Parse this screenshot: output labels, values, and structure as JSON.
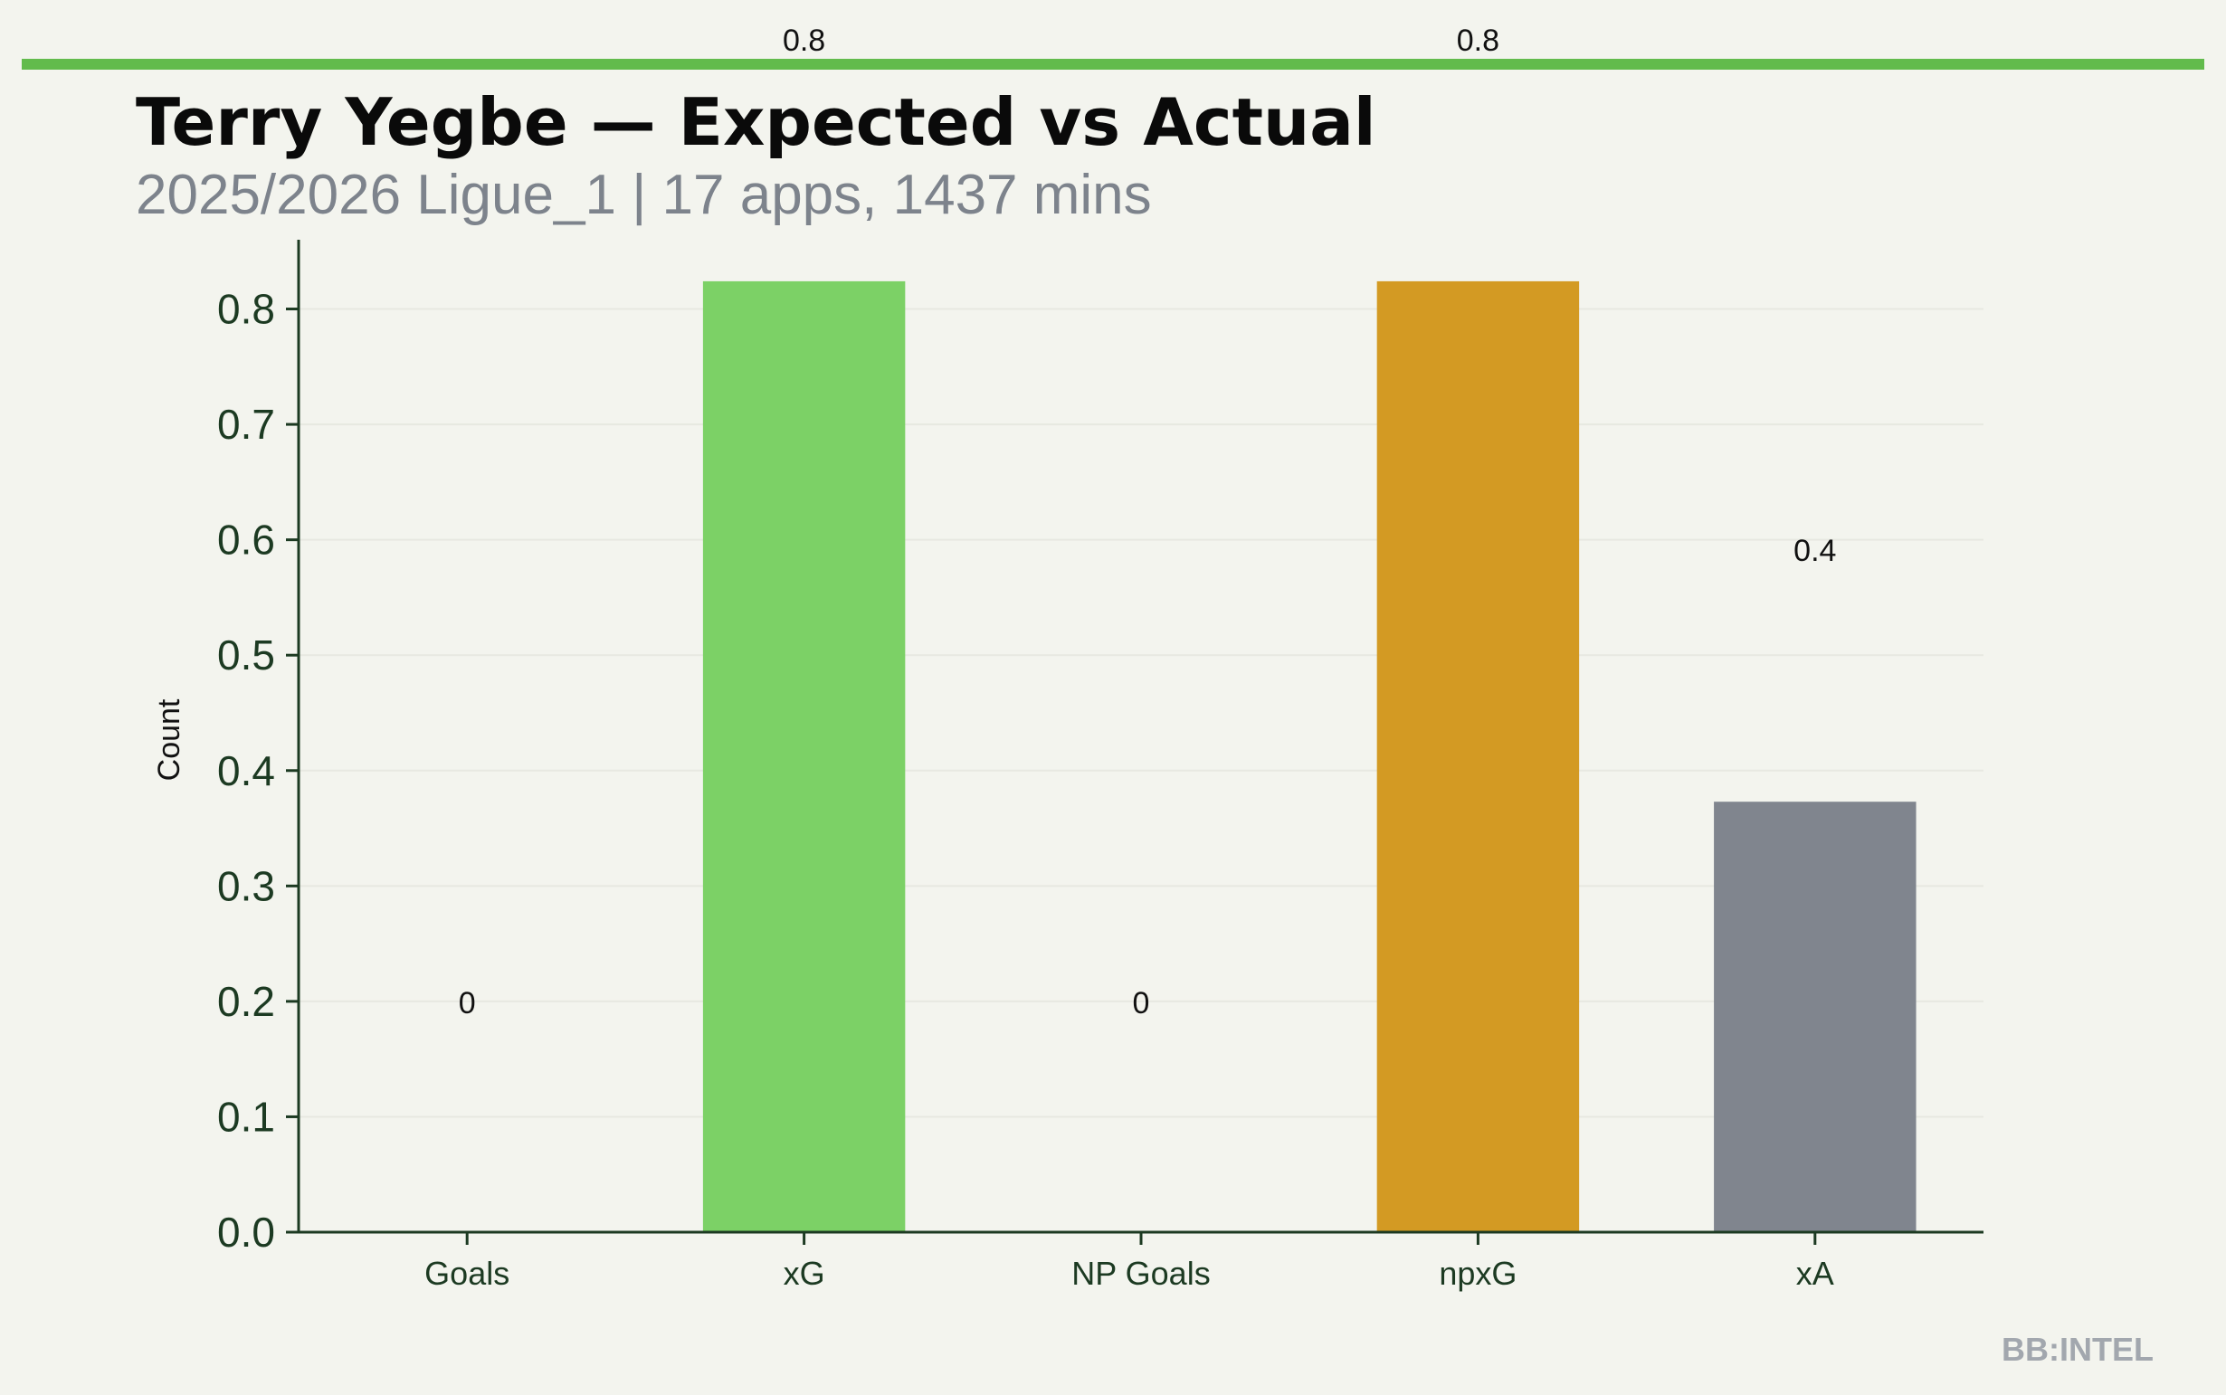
{
  "title": "Terry Yegbe — Expected vs Actual",
  "subtitle": "2025/2026 Ligue_1 | 17 apps, 1437 mins",
  "brand": "BB:INTEL",
  "colors": {
    "background": "#f3f4ee",
    "accent_rule": "#62bb4c",
    "axis": "#1c3a22"
  },
  "chart_data": {
    "type": "bar",
    "ylabel": "Count",
    "ylim": [
      0,
      0.86
    ],
    "yticks": [
      "0.0",
      "0.1",
      "0.2",
      "0.3",
      "0.4",
      "0.5",
      "0.6",
      "0.7",
      "0.8"
    ],
    "categories": [
      "Goals",
      "xG",
      "NP Goals",
      "npxG",
      "xA"
    ],
    "values": [
      0,
      0.824,
      0,
      0.824,
      0.373
    ],
    "data_labels": [
      "0",
      "0.8",
      "0",
      "0.8",
      "0.4"
    ],
    "bar_colors": [
      "#7cd166",
      "#7cd166",
      "#d39a23",
      "#d39a23",
      "#80858e"
    ],
    "grid": "horizontal"
  }
}
